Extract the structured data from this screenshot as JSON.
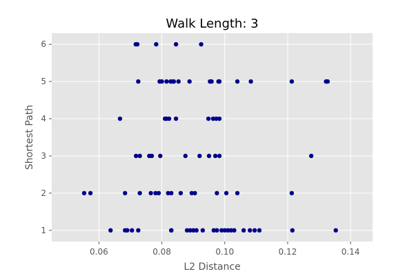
{
  "chart_data": {
    "type": "scatter",
    "title": "Walk Length: 3",
    "xlabel": "L2 Distance",
    "ylabel": "Shortest Path",
    "xlim": [
      0.045,
      0.147
    ],
    "ylim": [
      0.7,
      6.3
    ],
    "xticks": [
      0.06,
      0.08,
      0.1,
      0.12,
      0.14
    ],
    "xtick_labels": [
      "0.06",
      "0.08",
      "0.10",
      "0.12",
      "0.14"
    ],
    "yticks": [
      1,
      2,
      3,
      4,
      5,
      6
    ],
    "ytick_labels": [
      "1",
      "2",
      "3",
      "4",
      "5",
      "6"
    ],
    "grid": true,
    "colors": {
      "background": "#e5e5e5",
      "grid": "#ffffff",
      "marker": "#00008b",
      "tick": "#555555"
    },
    "x": [
      0.0637,
      0.0683,
      0.069,
      0.0705,
      0.0725,
      0.083,
      0.083,
      0.088,
      0.089,
      0.09,
      0.091,
      0.093,
      0.0965,
      0.0975,
      0.099,
      0.1,
      0.101,
      0.102,
      0.103,
      0.106,
      0.108,
      0.1095,
      0.111,
      0.1215,
      0.1353,
      0.0553,
      0.0573,
      0.0683,
      0.073,
      0.0765,
      0.078,
      0.079,
      0.082,
      0.083,
      0.086,
      0.0895,
      0.0905,
      0.0975,
      0.1005,
      0.104,
      0.1213,
      0.0718,
      0.073,
      0.076,
      0.0768,
      0.0795,
      0.0875,
      0.092,
      0.095,
      0.097,
      0.0983,
      0.1275,
      0.0667,
      0.081,
      0.0815,
      0.0823,
      0.0845,
      0.0948,
      0.0963,
      0.0973,
      0.0983,
      0.0725,
      0.0793,
      0.08,
      0.0815,
      0.0828,
      0.0835,
      0.0838,
      0.0853,
      0.0888,
      0.0953,
      0.0958,
      0.098,
      0.0983,
      0.104,
      0.1083,
      0.1213,
      0.1322,
      0.1327,
      0.0717,
      0.0722,
      0.0782,
      0.0845,
      0.0925
    ],
    "y": [
      1,
      1,
      1,
      1,
      1,
      1,
      1,
      1,
      1,
      1,
      1,
      1,
      1,
      1,
      1,
      1,
      1,
      1,
      1,
      1,
      1,
      1,
      1,
      1,
      1,
      2,
      2,
      2,
      2,
      2,
      2,
      2,
      2,
      2,
      2,
      2,
      2,
      2,
      2,
      2,
      2,
      3,
      3,
      3,
      3,
      3,
      3,
      3,
      3,
      3,
      3,
      3,
      4,
      4,
      4,
      4,
      4,
      4,
      4,
      4,
      4,
      5,
      5,
      5,
      5,
      5,
      5,
      5,
      5,
      5,
      5,
      5,
      5,
      5,
      5,
      5,
      5,
      5,
      5,
      6,
      6,
      6,
      6,
      6
    ]
  }
}
